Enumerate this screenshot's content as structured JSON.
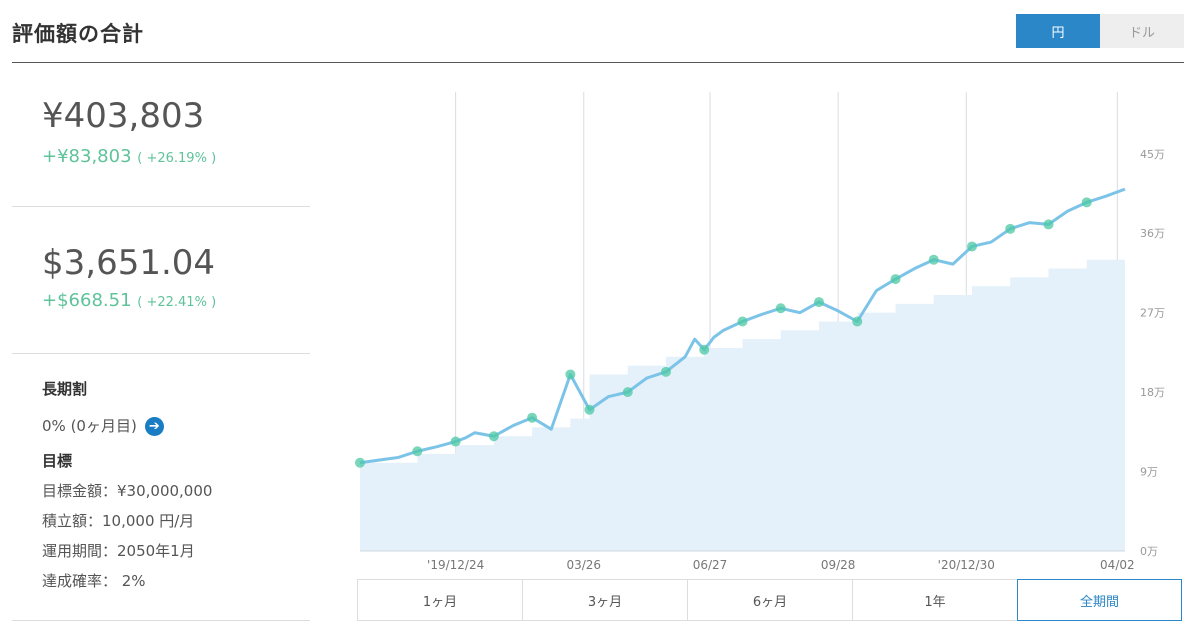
{
  "header": {
    "title": "評価額の合計",
    "currency_options": [
      "円",
      "ドル"
    ],
    "currency_selected": "円"
  },
  "summary": {
    "jpy_total": "¥403,803",
    "jpy_gain": "+¥83,803",
    "jpy_gain_pct": "( +26.19% )",
    "usd_total": "$3,651.04",
    "usd_gain": "+$668.51",
    "usd_gain_pct": "( +22.41% )"
  },
  "long_term": {
    "heading": "長期割",
    "value": "0% (0ヶ月目)",
    "arrow_icon": "arrow-right-circle-icon"
  },
  "goal": {
    "heading": "目標",
    "rows": [
      "目標金額：¥30,000,000",
      "積立額：10,000 円/月",
      "運用期間：2050年1月",
      "達成確率： 2%"
    ]
  },
  "chart_data": {
    "type": "area",
    "x_tick_labels": [
      "'19/12/24",
      "03/26",
      "06/27",
      "09/28",
      "'20/12/30",
      "04/02"
    ],
    "y_tick_labels": [
      "0万",
      "9万",
      "18万",
      "27万",
      "36万",
      "45万"
    ],
    "ylim": [
      0,
      52
    ],
    "y_unit": "万",
    "grid": true,
    "colors": {
      "value_line": "#7cc3e8",
      "deposit_area": "#e4f1fa",
      "dots": "#4cc8a4"
    },
    "series": [
      {
        "values_x": [
          0,
          2,
          3,
          4,
          5,
          5.5,
          6,
          7,
          8,
          9,
          10,
          11,
          12,
          13,
          14,
          15,
          16,
          17,
          17.5,
          18,
          18.5,
          19,
          20,
          21,
          22,
          23,
          24,
          25,
          26,
          27,
          28,
          29,
          30,
          31,
          32,
          33,
          34,
          35,
          36,
          37,
          38,
          39,
          40
        ],
        "values_y": [
          10,
          10.6,
          11.3,
          11.8,
          12.4,
          12.8,
          13.4,
          13.0,
          14.2,
          15.1,
          13.8,
          20.0,
          16.0,
          17.5,
          18.0,
          19.6,
          20.3,
          22.0,
          24.0,
          22.8,
          24.2,
          25.0,
          26.0,
          26.8,
          27.5,
          27.0,
          28.2,
          27.2,
          26.0,
          29.5,
          30.8,
          32.0,
          33.0,
          32.5,
          34.5,
          35.0,
          36.5,
          37.2,
          37.0,
          38.5,
          39.5,
          40.2,
          41.0
        ]
      },
      {
        "values_x": [
          0,
          3,
          5,
          7,
          9,
          11,
          12,
          14,
          16,
          18,
          20,
          22,
          24,
          26,
          28,
          30,
          32,
          34,
          36,
          38,
          40
        ],
        "values_y": [
          10,
          11,
          12,
          13,
          14,
          15,
          20,
          21,
          22,
          23,
          24,
          25,
          26,
          27,
          28,
          29,
          30,
          31,
          32,
          33,
          33
        ]
      }
    ]
  },
  "range_buttons": [
    "1ヶ月",
    "3ヶ月",
    "6ヶ月",
    "1年",
    "全期間"
  ],
  "range_selected": "全期間"
}
